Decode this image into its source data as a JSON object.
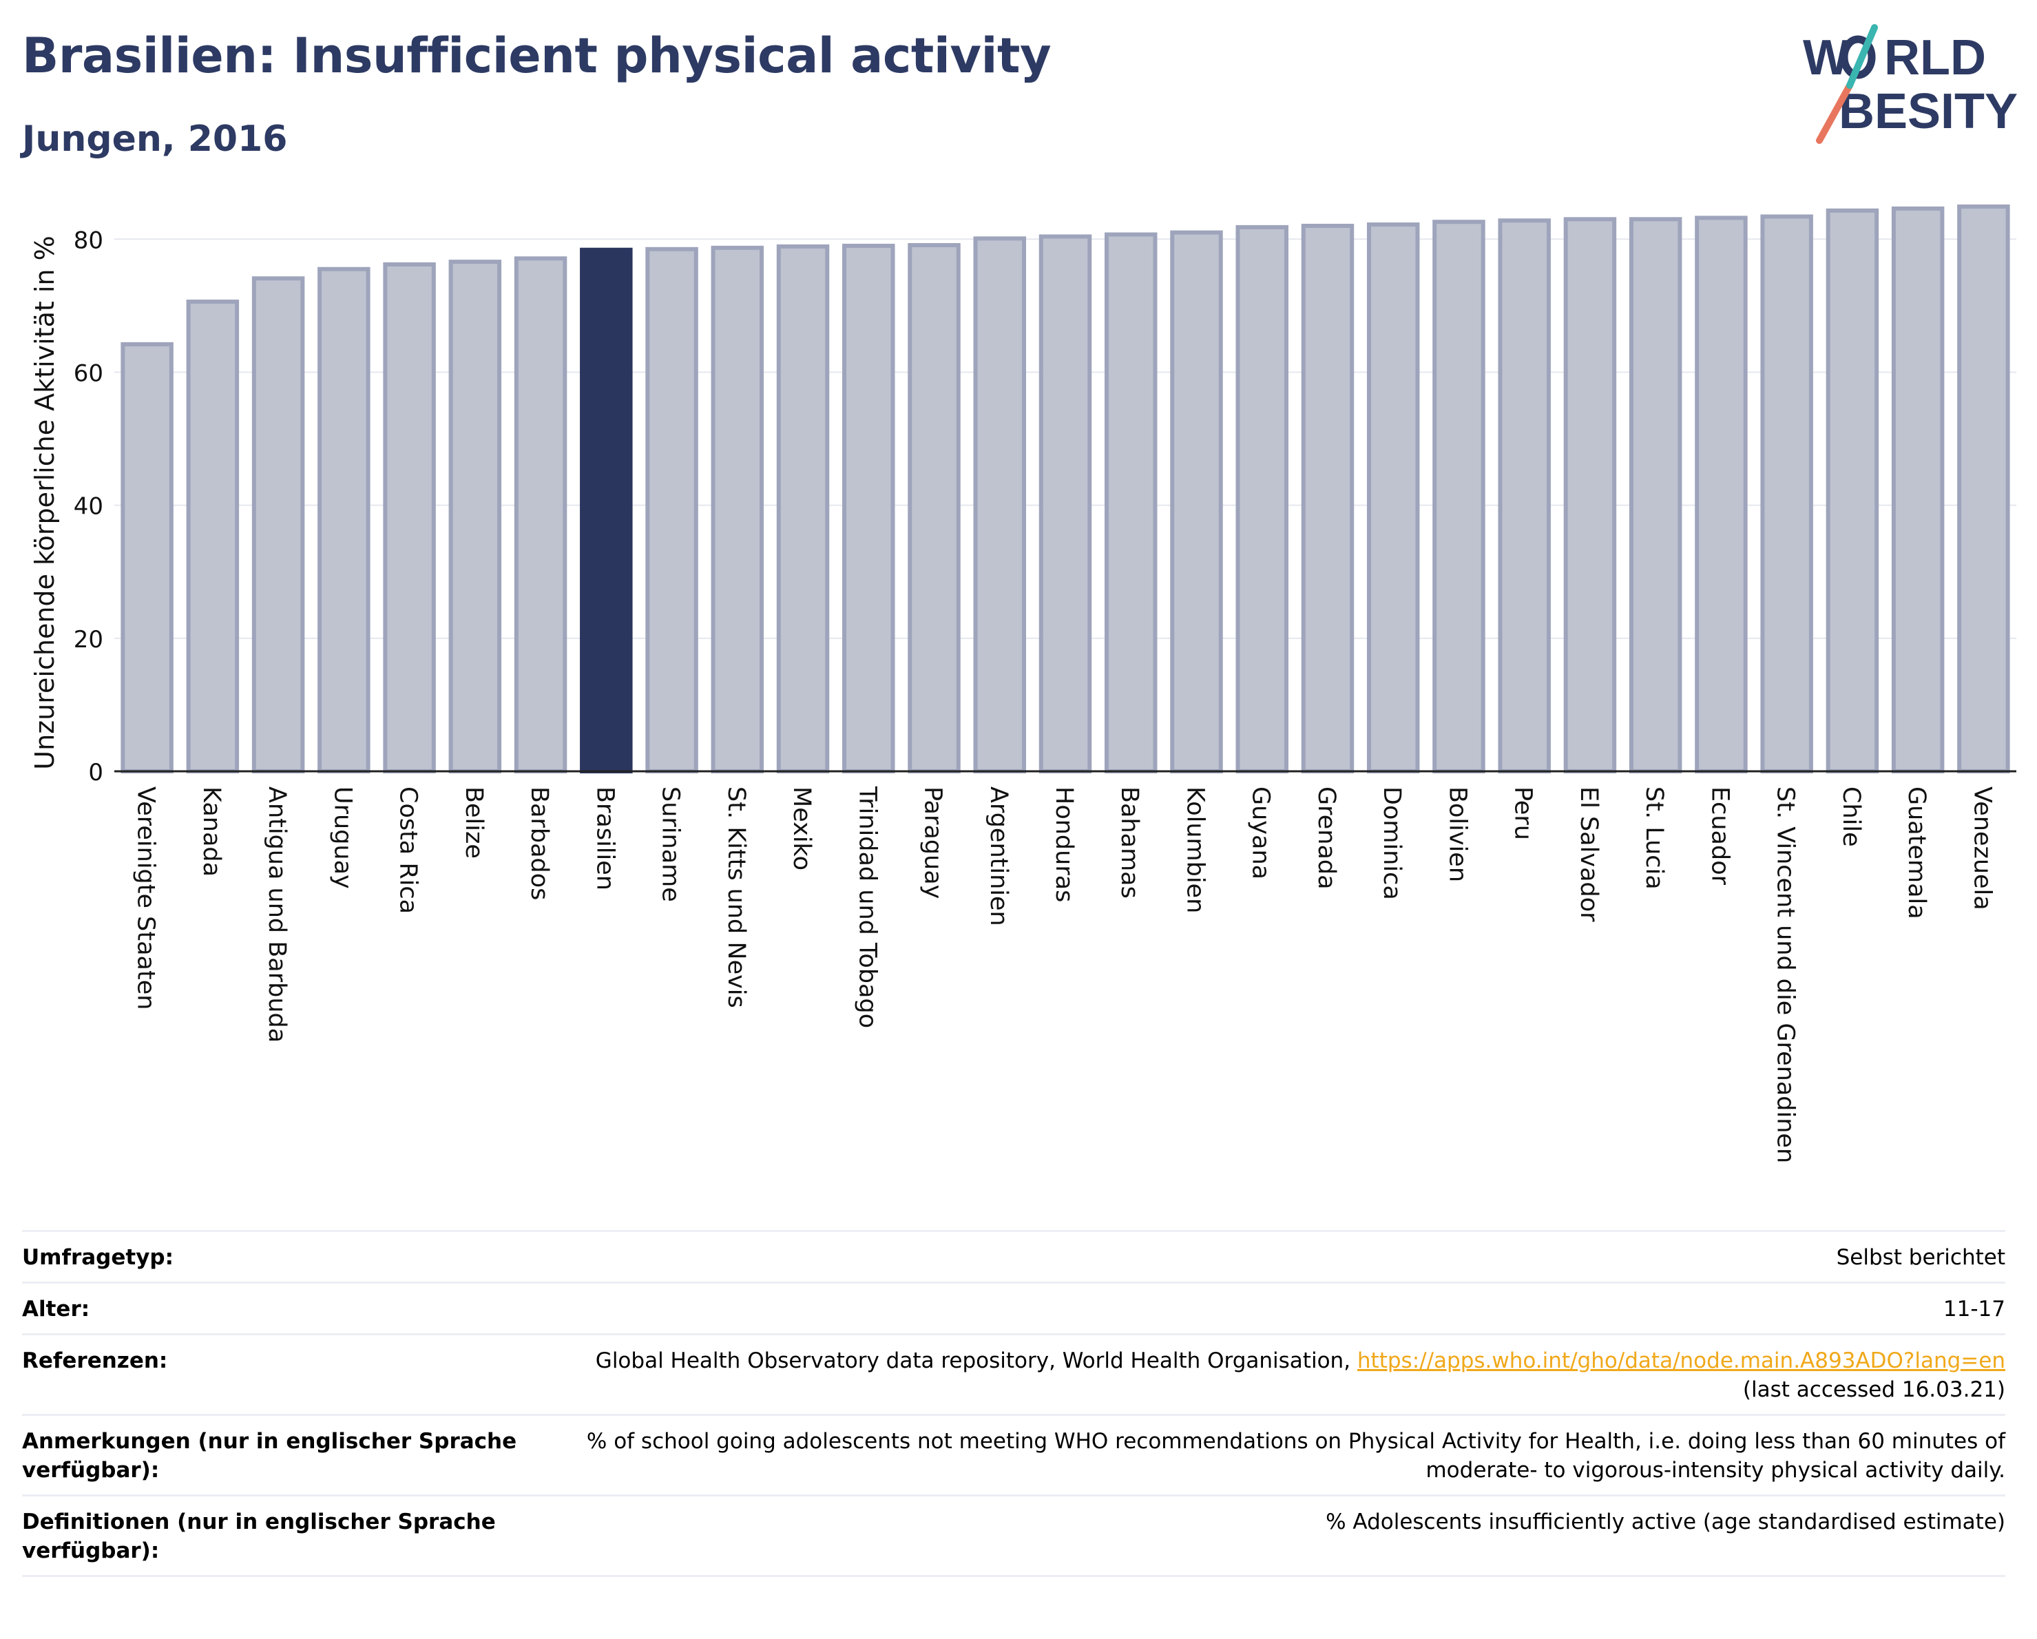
{
  "header": {
    "title": "Brasilien: Insufficient physical activity",
    "subtitle": "Jungen, 2016"
  },
  "logo": {
    "line1": "W",
    "line1b": "RLD",
    "line2": "BESITY",
    "accent_color": "#e8765e",
    "teal_color": "#3ab5b0"
  },
  "colors": {
    "bar": "#bfc3d0",
    "bar_border": "#9ea4bb",
    "highlight": "#2b365f",
    "title": "#2d3a63"
  },
  "chart_data": {
    "type": "bar",
    "ylabel": "Unzureichende körperliche Aktivität in %",
    "xlabel": "",
    "ylim": [
      0,
      88
    ],
    "yticks": [
      0,
      20,
      40,
      60,
      80
    ],
    "highlight": "Brasilien",
    "grid": true,
    "categories": [
      "Vereinigte Staaten",
      "Kanada",
      "Antigua und Barbuda",
      "Uruguay",
      "Costa Rica",
      "Belize",
      "Barbados",
      "Brasilien",
      "Suriname",
      "St. Kitts und Nevis",
      "Mexiko",
      "Trinidad und Tobago",
      "Paraguay",
      "Argentinien",
      "Honduras",
      "Bahamas",
      "Kolumbien",
      "Guyana",
      "Grenada",
      "Dominica",
      "Bolivien",
      "Peru",
      "El Salvador",
      "St. Lucia",
      "Ecuador",
      "St. Vincent und die Grenadinen",
      "Chile",
      "Guatemala",
      "Venezuela"
    ],
    "values": [
      64.2,
      70.6,
      74.1,
      75.5,
      76.2,
      76.6,
      77.1,
      78.4,
      78.5,
      78.7,
      78.9,
      79.0,
      79.1,
      80.1,
      80.4,
      80.7,
      81.0,
      81.8,
      82.0,
      82.2,
      82.6,
      82.8,
      83.0,
      83.0,
      83.2,
      83.4,
      84.3,
      84.6,
      84.9
    ]
  },
  "info": {
    "survey_label": "Umfragetyp:",
    "survey_value": "Selbst berichtet",
    "age_label": "Alter:",
    "age_value": "11-17",
    "ref_label": "Referenzen:",
    "ref_value": "Global Health Observatory data repository, World Health Organisation,",
    "ref_link": "https://apps.who.int/gho/data/node.main.A893ADO?lang=en",
    "ref_accessed": "(last accessed 16.03.21)",
    "notes_label": "Anmerkungen (nur in englischer Sprache verfügbar):",
    "notes_value": "% of school going adolescents not meeting WHO recommendations on Physical Activity for Health, i.e. doing less than 60 minutes of moderate- to vigorous-intensity physical activity daily.",
    "def_label": "Definitionen (nur in englischer Sprache verfügbar):",
    "def_value": "% Adolescents insufficiently active (age standardised estimate)"
  }
}
